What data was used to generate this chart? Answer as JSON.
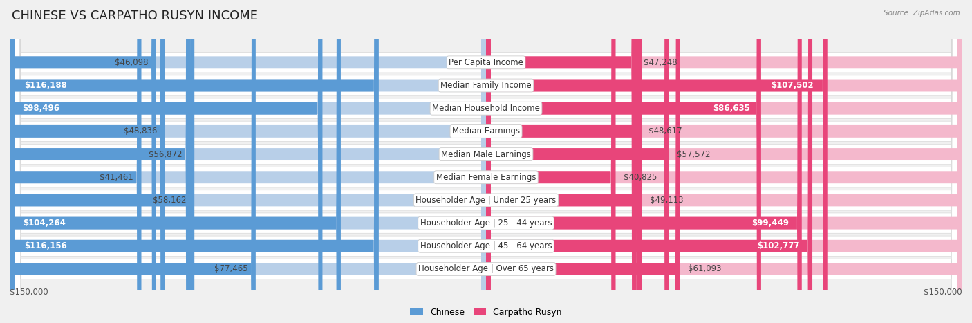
{
  "title": "CHINESE VS CARPATHO RUSYN INCOME",
  "source": "Source: ZipAtlas.com",
  "categories": [
    "Per Capita Income",
    "Median Family Income",
    "Median Household Income",
    "Median Earnings",
    "Median Male Earnings",
    "Median Female Earnings",
    "Householder Age | Under 25 years",
    "Householder Age | 25 - 44 years",
    "Householder Age | 45 - 64 years",
    "Householder Age | Over 65 years"
  ],
  "chinese_values": [
    46098,
    116188,
    98496,
    48836,
    56872,
    41461,
    58162,
    104264,
    116156,
    77465
  ],
  "rusyn_values": [
    47248,
    107502,
    86635,
    48617,
    57572,
    40825,
    49113,
    99449,
    102777,
    61093
  ],
  "chinese_labels": [
    "$46,098",
    "$116,188",
    "$98,496",
    "$48,836",
    "$56,872",
    "$41,461",
    "$58,162",
    "$104,264",
    "$116,156",
    "$77,465"
  ],
  "rusyn_labels": [
    "$47,248",
    "$107,502",
    "$86,635",
    "$48,617",
    "$57,572",
    "$40,825",
    "$49,113",
    "$99,449",
    "$102,777",
    "$61,093"
  ],
  "chinese_light": "#b8cfe8",
  "chinese_dark": "#5b9bd5",
  "rusyn_light": "#f4b8cc",
  "rusyn_dark": "#e8457a",
  "max_value": 150000,
  "background_color": "#f0f0f0",
  "row_bg_color": "#ffffff",
  "inside_label_threshold": 80000,
  "title_fontsize": 13,
  "cat_fontsize": 8.5,
  "value_fontsize": 8.5,
  "legend_fontsize": 9
}
